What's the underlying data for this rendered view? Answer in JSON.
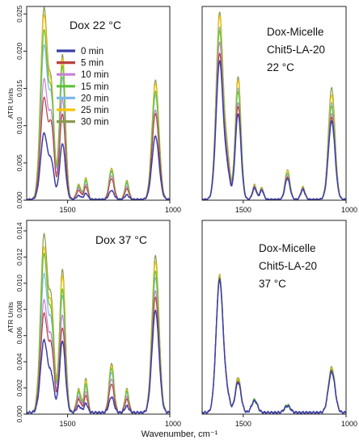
{
  "figure": {
    "xlabel": "Wavenumber, cm⁻¹"
  },
  "legend": {
    "entries": [
      {
        "label": "0 min",
        "color": "#3b3fa8"
      },
      {
        "label": "5 min",
        "color": "#b8403f"
      },
      {
        "label": "10 min",
        "color": "#c77fd6"
      },
      {
        "label": "15 min",
        "color": "#5cc43a"
      },
      {
        "label": "20 min",
        "color": "#7fb8ea"
      },
      {
        "label": "25 min",
        "color": "#f5c400"
      },
      {
        "label": "30 min",
        "color": "#8c9a4e"
      }
    ]
  },
  "chart_data": [
    {
      "type": "line",
      "id": "dox22",
      "annotation": [
        "Dox 22 °C"
      ],
      "ylabel": "ATR Units",
      "xlim": [
        1700,
        1000
      ],
      "ylim": [
        0,
        0.026
      ],
      "xticks": [
        1500,
        1000
      ],
      "yticks": [
        0.0,
        0.005,
        0.01,
        0.015,
        0.02,
        0.025
      ],
      "ytick_labels": [
        "0.000",
        "0.005",
        "0.010",
        "0.015",
        "0.020",
        "0.025"
      ],
      "legend": "top-left",
      "peaks": [
        {
          "x": 1615,
          "w": 17,
          "h": [
            0.0088,
            0.0135,
            0.016,
            0.0225,
            0.0205,
            0.0245,
            0.0255
          ]
        },
        {
          "x": 1578,
          "w": 13,
          "h": [
            0.0045,
            0.009,
            0.01,
            0.0125,
            0.012,
            0.013,
            0.0135
          ]
        },
        {
          "x": 1525,
          "w": 14,
          "h": [
            0.0075,
            0.0115,
            0.0135,
            0.018,
            0.0165,
            0.019,
            0.0195
          ]
        },
        {
          "x": 1445,
          "w": 11,
          "h": [
            0.0005,
            0.0012,
            0.0015,
            0.0018,
            0.0017,
            0.0019,
            0.002
          ]
        },
        {
          "x": 1410,
          "w": 9,
          "h": [
            0.0008,
            0.0017,
            0.002,
            0.0026,
            0.0024,
            0.0028,
            0.0029
          ]
        },
        {
          "x": 1285,
          "w": 12,
          "h": [
            0.0012,
            0.0028,
            0.0032,
            0.0039,
            0.0037,
            0.0041,
            0.0042
          ]
        },
        {
          "x": 1210,
          "w": 10,
          "h": [
            0.0006,
            0.0014,
            0.0017,
            0.0023,
            0.0021,
            0.0024,
            0.0025
          ]
        },
        {
          "x": 1070,
          "w": 17,
          "h": [
            0.0085,
            0.0115,
            0.012,
            0.0145,
            0.014,
            0.0155,
            0.016
          ]
        }
      ]
    },
    {
      "type": "line",
      "id": "doxmicelle22",
      "annotation": [
        "Dox-Micelle",
        "Chit5-LA-20",
        "22 °C"
      ],
      "ylabel": "",
      "xlim": [
        1700,
        1000
      ],
      "ylim": [
        0,
        0.026
      ],
      "xticks": [
        1500,
        1000
      ],
      "peaks": [
        {
          "x": 1615,
          "w": 17,
          "h": [
            0.0185,
            0.0195,
            0.021,
            0.0225,
            0.023,
            0.0245,
            0.025
          ]
        },
        {
          "x": 1578,
          "w": 13,
          "h": [
            0.0035,
            0.004,
            0.0045,
            0.005,
            0.005,
            0.0055,
            0.0055
          ]
        },
        {
          "x": 1525,
          "w": 14,
          "h": [
            0.0115,
            0.0125,
            0.013,
            0.0145,
            0.015,
            0.016,
            0.0165
          ]
        },
        {
          "x": 1445,
          "w": 10,
          "h": [
            0.0015,
            0.0016,
            0.0017,
            0.0018,
            0.0018,
            0.0019,
            0.002
          ]
        },
        {
          "x": 1410,
          "w": 9,
          "h": [
            0.0012,
            0.0013,
            0.0014,
            0.0015,
            0.0015,
            0.0016,
            0.0016
          ]
        },
        {
          "x": 1285,
          "w": 12,
          "h": [
            0.0028,
            0.003,
            0.0032,
            0.0035,
            0.0036,
            0.0039,
            0.004
          ]
        },
        {
          "x": 1210,
          "w": 10,
          "h": [
            0.0013,
            0.0014,
            0.0015,
            0.0016,
            0.0016,
            0.0017,
            0.0017
          ]
        },
        {
          "x": 1070,
          "w": 16,
          "h": [
            0.0105,
            0.011,
            0.0115,
            0.0125,
            0.013,
            0.014,
            0.015
          ]
        }
      ]
    },
    {
      "type": "line",
      "id": "dox37",
      "annotation": [
        "Dox 37 °C"
      ],
      "ylabel": "ATR Units",
      "xlim": [
        1700,
        1000
      ],
      "ylim": [
        0,
        0.0148
      ],
      "xticks": [
        1500,
        1000
      ],
      "yticks": [
        0.0,
        0.002,
        0.004,
        0.006,
        0.008,
        0.01,
        0.012,
        0.014
      ],
      "ytick_labels": [
        "0.000",
        "0.002",
        "0.004",
        "0.006",
        "0.008",
        "0.010",
        "0.012",
        "0.014"
      ],
      "peaks": [
        {
          "x": 1615,
          "w": 17,
          "h": [
            0.0055,
            0.0075,
            0.0085,
            0.012,
            0.0105,
            0.0125,
            0.0135
          ]
        },
        {
          "x": 1578,
          "w": 13,
          "h": [
            0.0025,
            0.0045,
            0.005,
            0.0065,
            0.006,
            0.007,
            0.0075
          ]
        },
        {
          "x": 1525,
          "w": 14,
          "h": [
            0.0055,
            0.0065,
            0.0075,
            0.0095,
            0.009,
            0.0105,
            0.011
          ]
        },
        {
          "x": 1445,
          "w": 11,
          "h": [
            0.0005,
            0.001,
            0.0012,
            0.0016,
            0.0015,
            0.0017,
            0.0018
          ]
        },
        {
          "x": 1410,
          "w": 9,
          "h": [
            0.0007,
            0.0013,
            0.0016,
            0.0022,
            0.002,
            0.0024,
            0.0026
          ]
        },
        {
          "x": 1285,
          "w": 12,
          "h": [
            0.0012,
            0.0022,
            0.0026,
            0.0034,
            0.0031,
            0.0036,
            0.0038
          ]
        },
        {
          "x": 1210,
          "w": 10,
          "h": [
            0.0005,
            0.001,
            0.0012,
            0.0016,
            0.0015,
            0.0017,
            0.0018
          ]
        },
        {
          "x": 1070,
          "w": 17,
          "h": [
            0.0078,
            0.0088,
            0.0093,
            0.0108,
            0.0103,
            0.0115,
            0.012
          ]
        }
      ]
    },
    {
      "type": "line",
      "id": "doxmicelle37",
      "annotation": [
        "Dox-Micelle",
        "Chit5-LA-20",
        "37 °C"
      ],
      "ylabel": "",
      "xlim": [
        1700,
        1000
      ],
      "ylim": [
        0,
        0.0148
      ],
      "xticks": [
        1500,
        1000
      ],
      "peaks": [
        {
          "x": 1615,
          "w": 17,
          "h": [
            0.0101,
            0.0102,
            0.0102,
            0.0103,
            0.0103,
            0.0104,
            0.0105
          ]
        },
        {
          "x": 1578,
          "w": 13,
          "h": [
            0.0012,
            0.0012,
            0.0012,
            0.0013,
            0.0013,
            0.0013,
            0.0013
          ]
        },
        {
          "x": 1525,
          "w": 14,
          "h": [
            0.0023,
            0.0024,
            0.0024,
            0.0025,
            0.0025,
            0.0026,
            0.0027
          ]
        },
        {
          "x": 1445,
          "w": 14,
          "h": [
            0.0009,
            0.0009,
            0.0009,
            0.001,
            0.001,
            0.001,
            0.001
          ]
        },
        {
          "x": 1285,
          "w": 14,
          "h": [
            0.0005,
            0.0005,
            0.0005,
            0.0006,
            0.0006,
            0.0006,
            0.0006
          ]
        },
        {
          "x": 1070,
          "w": 16,
          "h": [
            0.0031,
            0.0032,
            0.0032,
            0.0033,
            0.0033,
            0.0034,
            0.0035
          ]
        }
      ]
    }
  ]
}
